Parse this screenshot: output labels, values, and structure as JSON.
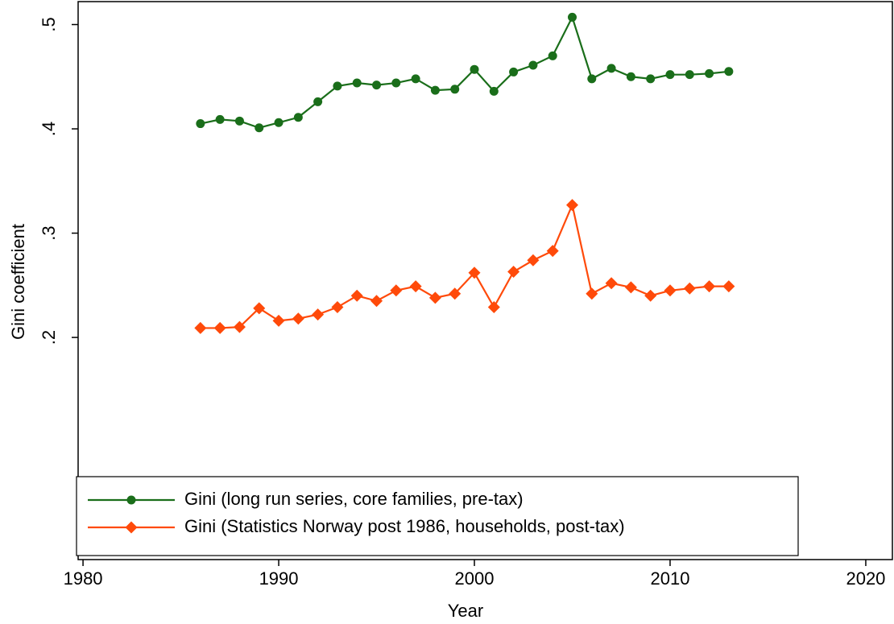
{
  "chart_data": {
    "type": "line",
    "x_label": "Year",
    "y_label": "Gini coefficient",
    "x": [
      1986,
      1987,
      1988,
      1989,
      1990,
      1991,
      1992,
      1993,
      1994,
      1995,
      1996,
      1997,
      1998,
      1999,
      2000,
      2001,
      2002,
      2003,
      2004,
      2005,
      2006,
      2007,
      2008,
      2009,
      2010,
      2011,
      2012,
      2013
    ],
    "series": [
      {
        "name": "Gini (long run series, core families, pre-tax)",
        "color": "#1a6e1a",
        "marker": "circle",
        "values": [
          0.405,
          0.409,
          0.4075,
          0.401,
          0.406,
          0.411,
          0.426,
          0.441,
          0.444,
          0.442,
          0.444,
          0.448,
          0.437,
          0.438,
          0.457,
          0.436,
          0.4545,
          0.461,
          0.47,
          0.507,
          0.448,
          0.458,
          0.45,
          0.448,
          0.452,
          0.452,
          0.453,
          0.455
        ]
      },
      {
        "name": "Gini (Statistics Norway post 1986, households, post-tax)",
        "color": "#ff4a0a",
        "marker": "diamond",
        "values": [
          0.209,
          0.209,
          0.21,
          0.228,
          0.216,
          0.218,
          0.222,
          0.229,
          0.24,
          0.235,
          0.245,
          0.249,
          0.238,
          0.242,
          0.262,
          0.229,
          0.263,
          0.274,
          0.283,
          0.327,
          0.242,
          0.252,
          0.248,
          0.24,
          0.245,
          0.247,
          0.249,
          0.249
        ]
      }
    ],
    "xlim": [
      1979.75,
      2021.36
    ],
    "ylim": [
      -0.013,
      0.522
    ],
    "xticks": [
      1980,
      1990,
      2000,
      2010,
      2020
    ],
    "yticks": [
      {
        "value": 0.2,
        "label": ".2"
      },
      {
        "value": 0.3,
        "label": ".3"
      },
      {
        "value": 0.4,
        "label": ".4"
      },
      {
        "value": 0.5,
        "label": ".5"
      }
    ],
    "legend": "bottom-left"
  }
}
